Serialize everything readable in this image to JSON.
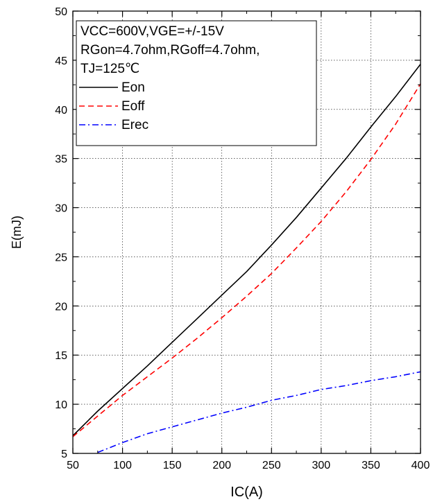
{
  "chart_data": {
    "type": "line",
    "title": "",
    "xlabel": "IC(A)",
    "ylabel": "E(mJ)",
    "xlim": [
      50,
      400
    ],
    "ylim": [
      5,
      50
    ],
    "x_ticks": [
      50,
      100,
      150,
      200,
      250,
      300,
      350,
      400
    ],
    "y_ticks": [
      5,
      10,
      15,
      20,
      25,
      30,
      35,
      40,
      45,
      50
    ],
    "grid": true,
    "legend_position": "top-left",
    "legend_conditions": [
      "VCC=600V,VGE=+/-15V",
      "RGon=4.7ohm,RGoff=4.7ohm,",
      "TJ=125℃"
    ],
    "series": [
      {
        "name": "Eon",
        "color": "#000000",
        "dash": "solid",
        "x": [
          50,
          75,
          100,
          125,
          150,
          175,
          200,
          225,
          250,
          275,
          300,
          325,
          350,
          375,
          400
        ],
        "y": [
          6.8,
          9.3,
          11.6,
          13.9,
          16.3,
          18.7,
          21.1,
          23.5,
          26.2,
          29.0,
          32.0,
          35.0,
          38.2,
          41.3,
          44.6
        ]
      },
      {
        "name": "Eoff",
        "color": "#ff0000",
        "dash": "dashed",
        "x": [
          50,
          75,
          100,
          125,
          150,
          175,
          200,
          225,
          250,
          275,
          300,
          325,
          350,
          375,
          400
        ],
        "y": [
          6.7,
          8.8,
          10.9,
          12.8,
          14.7,
          16.7,
          18.8,
          21.0,
          23.3,
          25.9,
          28.6,
          31.6,
          34.9,
          38.5,
          42.6
        ]
      },
      {
        "name": "Erec",
        "color": "#0000ff",
        "dash": "dashdot",
        "x": [
          75,
          100,
          125,
          150,
          175,
          200,
          225,
          250,
          275,
          300,
          325,
          350,
          375,
          400
        ],
        "y": [
          5.1,
          6.1,
          7.0,
          7.7,
          8.4,
          9.1,
          9.7,
          10.4,
          10.9,
          11.5,
          11.9,
          12.4,
          12.8,
          13.3
        ]
      }
    ]
  }
}
